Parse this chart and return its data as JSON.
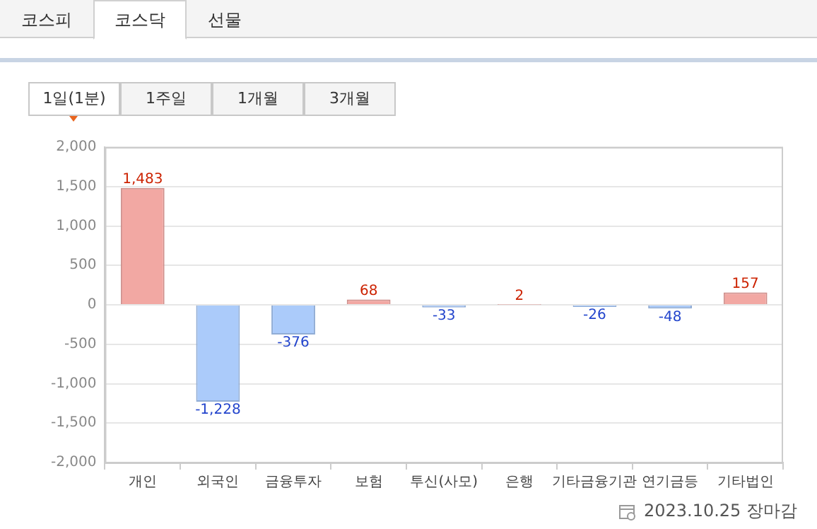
{
  "chart_data": {
    "type": "bar",
    "categories": [
      "개인",
      "외국인",
      "금융투자",
      "보험",
      "투신(사모)",
      "은행",
      "기타금융기관",
      "연기금등",
      "기타법인"
    ],
    "values": [
      1483,
      -1228,
      -376,
      68,
      -33,
      2,
      -26,
      -48,
      157
    ],
    "colors": [
      "#f2a8a3",
      "#abcbfa",
      "#abcbfa",
      "#f2a8a3",
      "#abcbfa",
      "#f2a8a3",
      "#abcbfa",
      "#abcbfa",
      "#f2a8a3"
    ],
    "value_labels": [
      "1,483",
      "-1,228",
      "-376",
      "68",
      "-33",
      "2",
      "-26",
      "-48",
      "157"
    ],
    "ylim": [
      -2000,
      2000
    ],
    "yticks": [
      {
        "value": -2000,
        "label": "-2,000"
      },
      {
        "value": -1500,
        "label": "-1,500"
      },
      {
        "value": -1000,
        "label": "-1,000"
      },
      {
        "value": -500,
        "label": "-500"
      },
      0,
      {
        "value": 500,
        "label": "500"
      },
      {
        "value": 1000,
        "label": "1,000"
      },
      {
        "value": 1500,
        "label": "1,500"
      },
      {
        "value": 2000,
        "label": "2,000"
      }
    ],
    "grid": "y",
    "annotations": [
      "코스피",
      "코스닥",
      "선물",
      "1일(1분)",
      "1주일",
      "1개월",
      "3개월",
      "2023.10.25 장마감"
    ]
  }
}
